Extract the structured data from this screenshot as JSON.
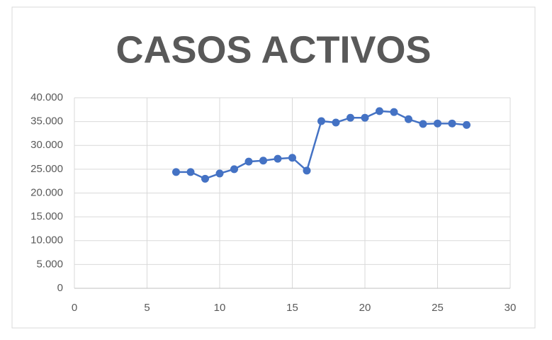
{
  "chart_data": {
    "type": "line",
    "title": "CASOS ACTIVOS",
    "x": [
      7,
      8,
      9,
      10,
      11,
      12,
      13,
      14,
      15,
      16,
      17,
      18,
      19,
      20,
      21,
      22,
      23,
      24,
      25,
      26,
      27
    ],
    "values": [
      24400,
      24400,
      23000,
      24100,
      25000,
      26600,
      26800,
      27200,
      27400,
      24700,
      35100,
      34800,
      35800,
      35800,
      37200,
      37000,
      35500,
      34500,
      34600,
      34600,
      34300
    ],
    "color": "#4472c4",
    "xlim": [
      0,
      30
    ],
    "xticks": [
      0,
      5,
      10,
      15,
      20,
      25,
      30
    ],
    "ylim": [
      0,
      40000
    ],
    "yticks": [
      0,
      {
        "value": 5000,
        "label": "5.000"
      },
      {
        "value": 10000,
        "label": "10.000"
      },
      {
        "value": 15000,
        "label": "15.000"
      },
      {
        "value": 20000,
        "label": "20.000"
      },
      {
        "value": 25000,
        "label": "25.000"
      },
      {
        "value": 30000,
        "label": "30.000"
      },
      {
        "value": 35000,
        "label": "35.000"
      },
      {
        "value": 40000,
        "label": "40.000"
      }
    ],
    "grid": true
  }
}
